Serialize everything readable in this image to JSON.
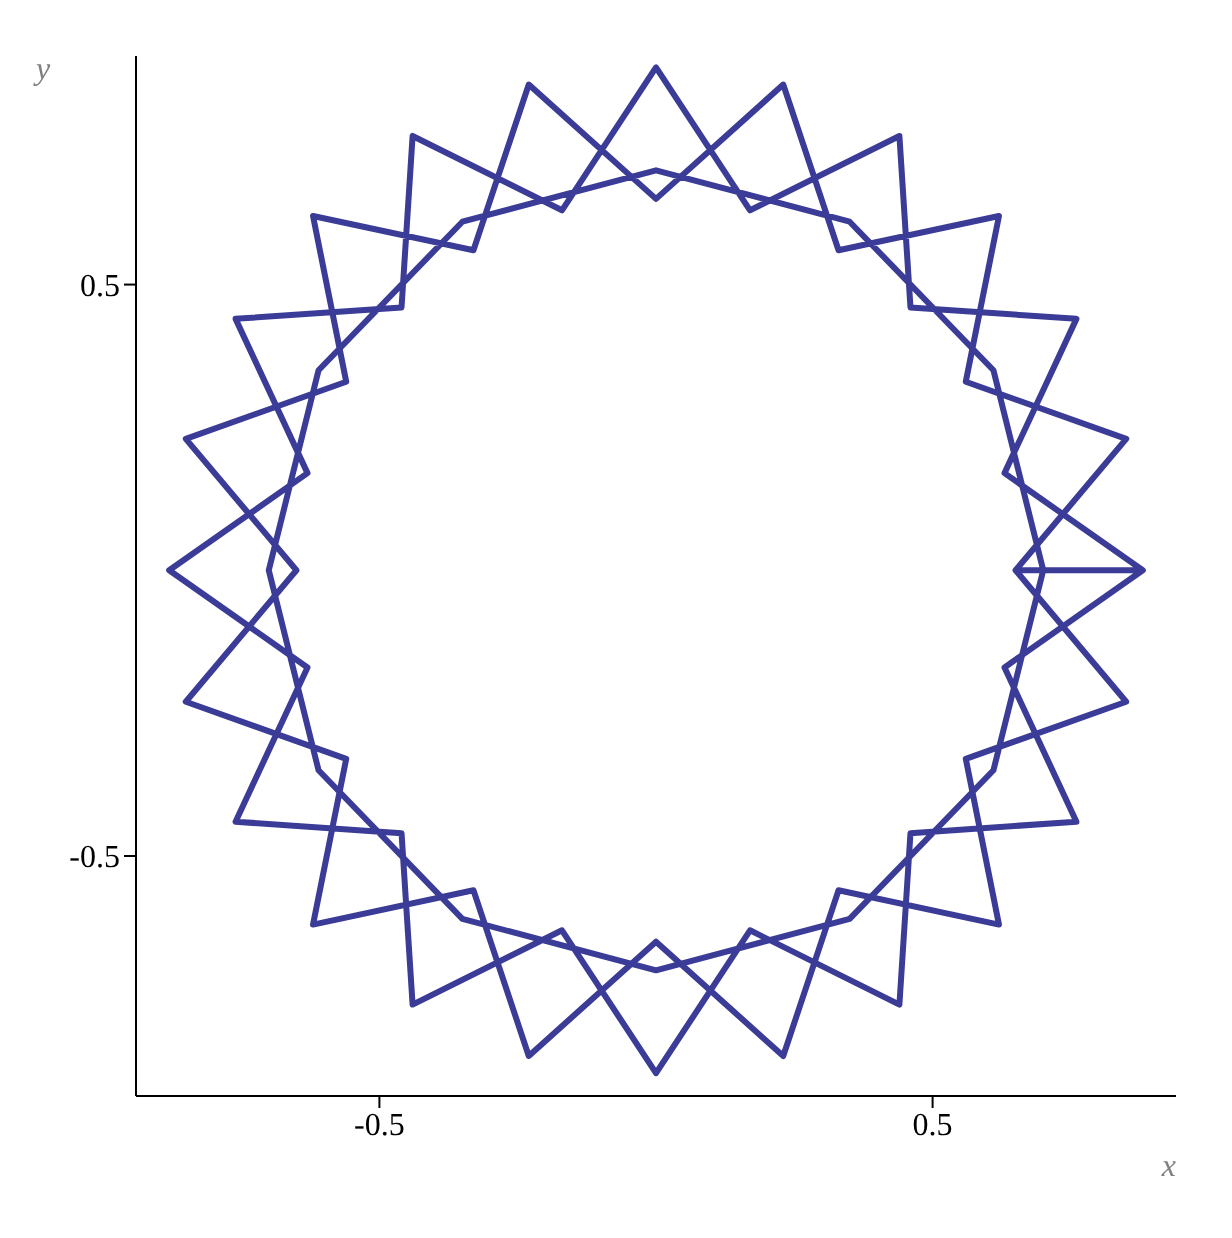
{
  "chart_data": {
    "type": "line",
    "xlabel": "x",
    "ylabel": "y",
    "xlim": [
      -0.94,
      0.94
    ],
    "ylim": [
      -0.92,
      0.9
    ],
    "xticks": [
      -0.5,
      0.5
    ],
    "yticks": [
      -0.5,
      0.5
    ],
    "grid": false,
    "legend": false,
    "marker": "none",
    "line_style": "solid",
    "series": [
      {
        "color": "#3b3b98",
        "x": [
          0.88,
          0.63,
          0.76,
          0.46,
          0.44,
          0.17,
          0,
          -0.17,
          -0.44,
          -0.46,
          -0.76,
          -0.63,
          -0.88,
          -0.63,
          -0.76,
          -0.46,
          -0.44,
          -0.17,
          0,
          0.17,
          0.44,
          0.46,
          0.76,
          0.63,
          0.88,
          0.65,
          0.85,
          0.56,
          0.62,
          0.33,
          0.23,
          0,
          -0.23,
          -0.33,
          -0.62,
          -0.56,
          -0.85,
          -0.65,
          -0.85,
          -0.56,
          -0.62,
          -0.33,
          -0.23,
          0,
          0.23,
          0.33,
          0.62,
          0.56,
          0.85,
          0.65,
          0.7,
          0.61,
          0.35,
          0,
          -0.35,
          -0.61,
          -0.7,
          -0.61,
          -0.35,
          0,
          0.35,
          0.61,
          0.7
        ],
        "values": [
          0,
          0.17,
          0.44,
          0.46,
          0.76,
          0.63,
          0.88,
          0.63,
          0.76,
          0.46,
          0.44,
          0.17,
          0,
          -0.17,
          -0.44,
          -0.46,
          -0.76,
          -0.63,
          -0.88,
          -0.63,
          -0.76,
          -0.46,
          -0.44,
          -0.17,
          0,
          0,
          0.23,
          0.33,
          0.62,
          0.56,
          0.85,
          0.65,
          0.85,
          0.56,
          0.62,
          0.33,
          0.23,
          0,
          -0.23,
          -0.33,
          -0.62,
          -0.56,
          -0.85,
          -0.65,
          -0.85,
          -0.56,
          -0.62,
          -0.33,
          -0.23,
          0,
          0,
          0.35,
          0.61,
          0.7,
          0.61,
          0.35,
          0,
          -0.35,
          -0.61,
          -0.7,
          -0.61,
          -0.35,
          0
        ]
      }
    ]
  }
}
